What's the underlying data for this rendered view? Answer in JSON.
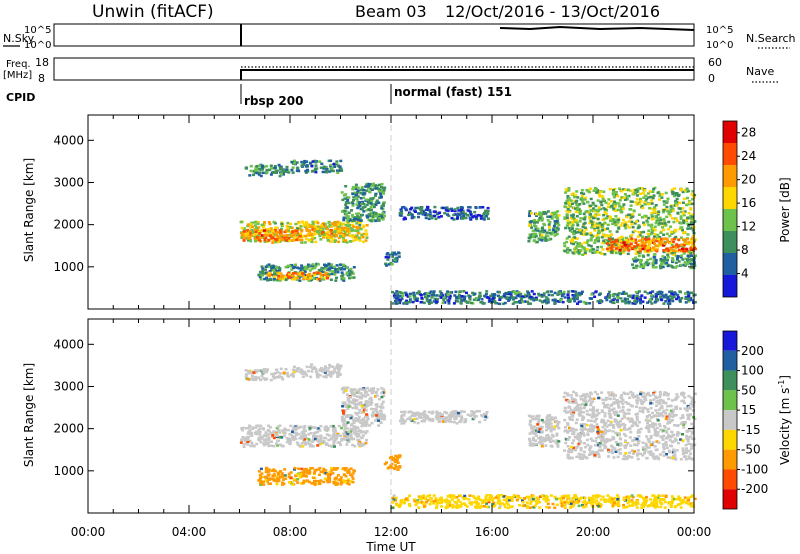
{
  "header": {
    "station": "Unwin (fitACF)",
    "beam": "Beam 03",
    "date_range": "12/Oct/2016 - 13/Oct/2016"
  },
  "top_panels": {
    "nsky_label": "N.Sky",
    "nsky_ticks": [
      "10^5",
      "10^0"
    ],
    "nsearch_label": "N.Search",
    "nsearch_ticks": [
      "10^5",
      "10^0"
    ],
    "freq_label_line1": "Freq.",
    "freq_label_line2": "[MHz]",
    "freq_ticks": [
      "18",
      "8"
    ],
    "nave_label": "Nave",
    "nave_ticks": [
      "60",
      "0"
    ],
    "cpid_label": "CPID",
    "cpid_modes": [
      {
        "label": "rbsp 200",
        "start": "06:00"
      },
      {
        "label": "normal (fast) 151",
        "start": "12:00"
      }
    ]
  },
  "chart_data": [
    {
      "type": "heatmap",
      "name": "power",
      "ylabel": "Slant Range [km]",
      "ylim": [
        0,
        4600
      ],
      "yticks": [
        1000,
        2000,
        3000,
        4000
      ],
      "xlim": [
        0,
        24
      ],
      "xticks": [
        "00:00",
        "04:00",
        "08:00",
        "12:00",
        "16:00",
        "20:00",
        "00:00"
      ],
      "colorbar": {
        "label": "Power [dB]",
        "ticks": [
          "4",
          "8",
          "12",
          "16",
          "20",
          "24",
          "28"
        ],
        "range": [
          0,
          30
        ],
        "colors": [
          "#1818d8",
          "#2060a0",
          "#3d8f5c",
          "#6cc24a",
          "#ffd700",
          "#ff9a00",
          "#ff4a00",
          "#e00000"
        ]
      },
      "blobs": [
        {
          "t0": 6.2,
          "t1": 7.9,
          "r0": 3180,
          "r1": 3450,
          "v": 9
        },
        {
          "t0": 8.0,
          "t1": 10.0,
          "r0": 3250,
          "r1": 3550,
          "v": 8
        },
        {
          "t0": 6.0,
          "t1": 11.0,
          "r0": 1600,
          "r1": 2100,
          "v": 16
        },
        {
          "t0": 6.0,
          "t1": 8.5,
          "r0": 1650,
          "r1": 1900,
          "v": 22
        },
        {
          "t0": 8.5,
          "t1": 10.5,
          "r0": 1750,
          "r1": 2050,
          "v": 18
        },
        {
          "t0": 10.0,
          "t1": 11.7,
          "r0": 2100,
          "r1": 3000,
          "v": 10
        },
        {
          "t0": 6.7,
          "t1": 10.5,
          "r0": 700,
          "r1": 1100,
          "v": 9
        },
        {
          "t0": 7.0,
          "t1": 9.5,
          "r0": 730,
          "r1": 900,
          "v": 20
        },
        {
          "t0": 11.7,
          "t1": 12.3,
          "r0": 1050,
          "r1": 1400,
          "v": 8
        },
        {
          "t0": 12.3,
          "t1": 15.8,
          "r0": 2150,
          "r1": 2450,
          "v": 6
        },
        {
          "t0": 17.4,
          "t1": 18.6,
          "r0": 1600,
          "r1": 2350,
          "v": 11
        },
        {
          "t0": 18.8,
          "t1": 24.0,
          "r0": 1300,
          "r1": 2900,
          "v": 13
        },
        {
          "t0": 20.5,
          "t1": 24.0,
          "r0": 1400,
          "r1": 1700,
          "v": 22
        },
        {
          "t0": 21.5,
          "t1": 24.0,
          "r0": 1000,
          "r1": 1300,
          "v": 10
        },
        {
          "t0": 12.0,
          "t1": 24.0,
          "r0": 150,
          "r1": 450,
          "v": 7
        }
      ]
    },
    {
      "type": "heatmap",
      "name": "velocity",
      "ylabel": "Slant Range [km]",
      "ylim": [
        0,
        4600
      ],
      "yticks": [
        1000,
        2000,
        3000,
        4000
      ],
      "xlabel": "Time UT",
      "xlim": [
        0,
        24
      ],
      "xticks": [
        "00:00",
        "04:00",
        "08:00",
        "12:00",
        "16:00",
        "20:00",
        "00:00"
      ],
      "colorbar": {
        "label": "Velocity [m s^-1]",
        "ticks": [
          "200",
          "100",
          "50",
          "15",
          "-15",
          "-50",
          "-100",
          "-200"
        ],
        "colors": [
          "#1818d8",
          "#2060a0",
          "#3d8f5c",
          "#6cc24a",
          "#c8c8c8",
          "#ffd700",
          "#ff9a00",
          "#ff4a00",
          "#e00000"
        ]
      },
      "blobs": [
        {
          "t0": 6.2,
          "t1": 7.9,
          "r0": 3180,
          "r1": 3450,
          "v": 0
        },
        {
          "t0": 8.0,
          "t1": 10.0,
          "r0": 3250,
          "r1": 3550,
          "v": 0
        },
        {
          "t0": 6.0,
          "t1": 11.0,
          "r0": 1600,
          "r1": 2100,
          "v": 0
        },
        {
          "t0": 10.0,
          "t1": 11.7,
          "r0": 2100,
          "r1": 3000,
          "v": 0
        },
        {
          "t0": 6.7,
          "t1": 10.5,
          "r0": 700,
          "r1": 1100,
          "v": -60
        },
        {
          "t0": 11.7,
          "t1": 12.3,
          "r0": 1050,
          "r1": 1400,
          "v": -70
        },
        {
          "t0": 12.3,
          "t1": 15.8,
          "r0": 2150,
          "r1": 2450,
          "v": 0
        },
        {
          "t0": 17.4,
          "t1": 18.6,
          "r0": 1600,
          "r1": 2350,
          "v": 0
        },
        {
          "t0": 18.8,
          "t1": 24.0,
          "r0": 1300,
          "r1": 2900,
          "v": 0
        },
        {
          "t0": 12.0,
          "t1": 24.0,
          "r0": 150,
          "r1": 450,
          "v": -40
        }
      ]
    }
  ]
}
